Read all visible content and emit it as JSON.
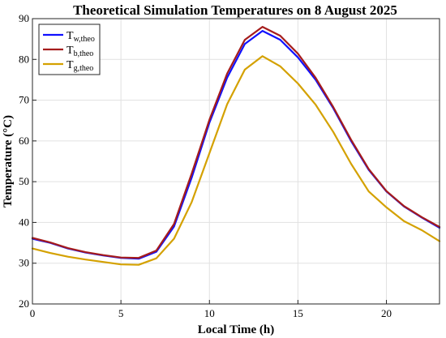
{
  "chart_data": {
    "type": "line",
    "title": "Theoretical Simulation Temperatures on 8 August 2025",
    "xlabel": "Local Time (h)",
    "ylabel": "Temperature (°C)",
    "xlim": [
      0,
      23
    ],
    "ylim": [
      20,
      90
    ],
    "xticks": [
      0,
      5,
      10,
      15,
      20
    ],
    "yticks": [
      20,
      30,
      40,
      50,
      60,
      70,
      80,
      90
    ],
    "grid": true,
    "legend_position": "top-left",
    "x": [
      0,
      1,
      2,
      3,
      4,
      5,
      6,
      7,
      8,
      9,
      10,
      11,
      12,
      13,
      14,
      15,
      16,
      17,
      18,
      19,
      20,
      21,
      22,
      23
    ],
    "series": [
      {
        "name": "T",
        "subscript": "w,theo",
        "color": "#1010ff",
        "values": [
          36.0,
          35.0,
          33.6,
          32.6,
          31.9,
          31.3,
          31.1,
          32.8,
          39.0,
          51.0,
          64.5,
          75.5,
          83.8,
          87.0,
          84.8,
          80.5,
          75.0,
          68.0,
          60.0,
          52.9,
          47.6,
          43.9,
          41.2,
          38.7
        ]
      },
      {
        "name": "T",
        "subscript": "b,theo",
        "color": "#a51c1c",
        "values": [
          36.2,
          35.1,
          33.7,
          32.7,
          32.0,
          31.4,
          31.3,
          33.1,
          39.6,
          52.0,
          65.2,
          76.5,
          84.8,
          88.0,
          85.8,
          81.4,
          75.5,
          68.3,
          60.3,
          53.1,
          47.7,
          44.0,
          41.3,
          38.9
        ]
      },
      {
        "name": "T",
        "subscript": "g,theo",
        "color": "#d4a100",
        "values": [
          33.6,
          32.5,
          31.6,
          30.9,
          30.3,
          29.7,
          29.6,
          31.2,
          36.0,
          45.0,
          57.0,
          69.0,
          77.5,
          80.8,
          78.3,
          74.1,
          68.9,
          62.2,
          54.4,
          47.6,
          43.7,
          40.3,
          38.1,
          35.4
        ]
      }
    ]
  }
}
